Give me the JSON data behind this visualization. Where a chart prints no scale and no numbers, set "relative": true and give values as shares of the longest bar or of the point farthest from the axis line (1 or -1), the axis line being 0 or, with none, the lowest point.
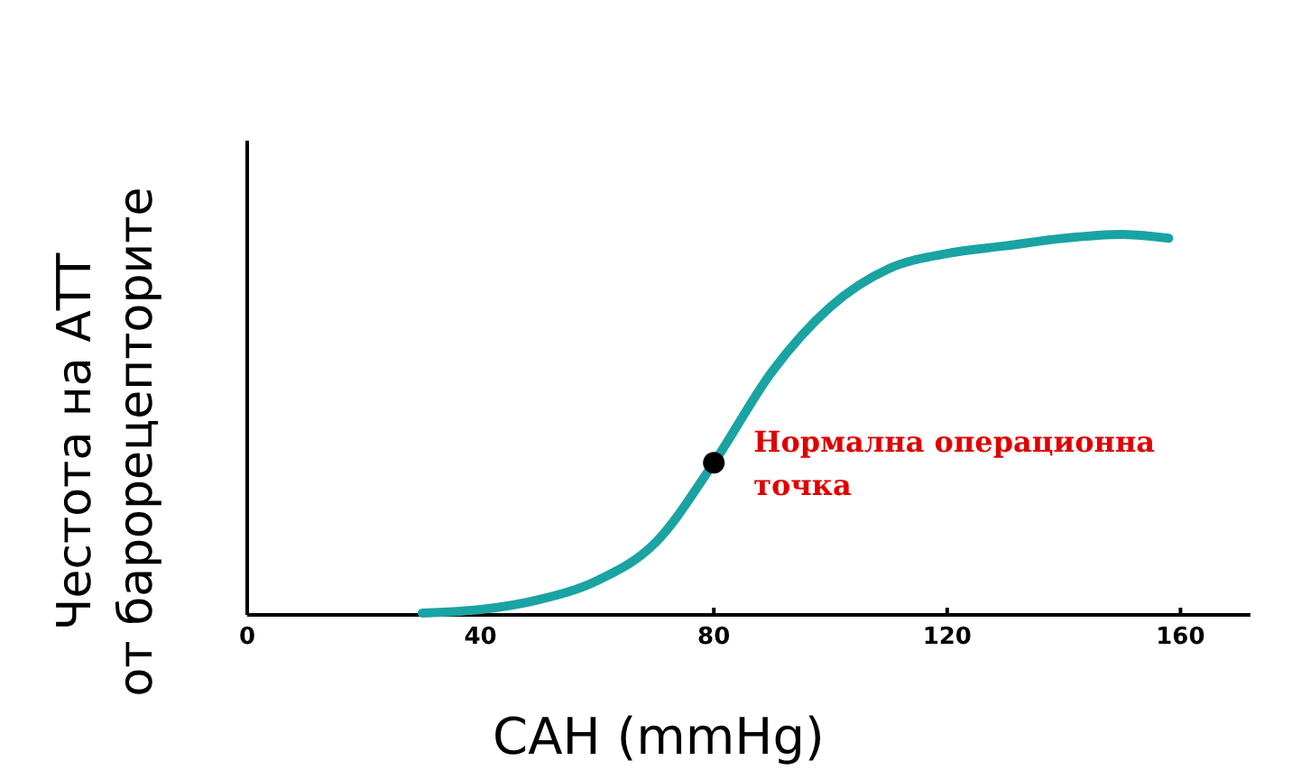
{
  "chart_data": {
    "type": "line",
    "relative": true,
    "xlabel": "САН (mmHg)",
    "ylabel": "Честота на АТТ\nот барорецепторите",
    "xlim": [
      0,
      172
    ],
    "xticks": [
      0,
      40,
      80,
      120,
      160
    ],
    "grid": false,
    "line_style": "solid",
    "series": [
      {
        "color": "#1aa3a3",
        "x": [
          30,
          40,
          50,
          60,
          70,
          80,
          90,
          100,
          110,
          120,
          130,
          140,
          150,
          158
        ],
        "values": [
          0.005,
          0.014,
          0.04,
          0.09,
          0.19,
          0.4,
          0.64,
          0.81,
          0.91,
          0.95,
          0.97,
          0.99,
          1,
          0.99
        ]
      },
      {
        "type": "scatter",
        "marker": "circle",
        "color": "#000000",
        "x": [
          80
        ],
        "values": [
          0.4
        ]
      }
    ],
    "annotations": [
      {
        "text": "Нормална операционна\nточка",
        "x": 80,
        "y": 0.4
      }
    ]
  }
}
